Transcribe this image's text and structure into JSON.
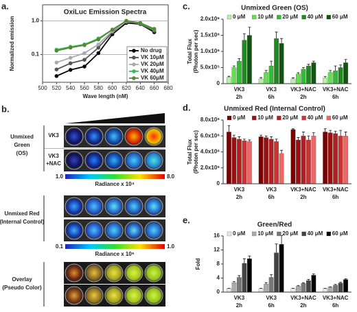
{
  "panel_labels": [
    "a.",
    "b.",
    "c.",
    "d.",
    "e."
  ],
  "panel_b": {
    "green_label": [
      "Unmixed",
      "Green",
      "(OS)"
    ],
    "row_labels": [
      [
        "VK3"
      ],
      [
        "VK3",
        "+NAC"
      ]
    ],
    "green_scale": {
      "min": "1.0",
      "label": "Radiance x 10⁴",
      "max": "8.0"
    },
    "red_label": [
      "Unmixed Red",
      "(Internal Control)"
    ],
    "red_scale": {
      "min": "0.1",
      "label": "Radiance x 10⁶",
      "max": "1.0"
    },
    "overlay_label": [
      "Overlay",
      "(Pseudo Color)"
    ]
  },
  "chart_data": [
    {
      "type": "line",
      "title": "OxiLuc Emission Spectra",
      "x_label": "Wave length (nM)",
      "y_label": [
        "Normalized emission"
      ],
      "x": [
        520,
        540,
        560,
        580,
        600,
        620,
        640,
        660
      ],
      "series": [
        {
          "name": "No drug",
          "color": "#000000",
          "values": [
            0.023,
            0.035,
            0.044,
            0.11,
            0.4,
            0.87,
            0.8,
            0.46
          ]
        },
        {
          "name": "VK 10μM",
          "color": "#555555",
          "values": [
            0.036,
            0.055,
            0.07,
            0.16,
            0.46,
            1.0,
            0.8,
            0.5
          ]
        },
        {
          "name": "VK 20μM",
          "color": "#aaaaaa",
          "values": [
            0.058,
            0.08,
            0.11,
            0.2,
            0.5,
            0.95,
            0.85,
            0.55
          ]
        },
        {
          "name": "VK 40μM",
          "color": "#33bb55",
          "values": [
            0.14,
            0.17,
            0.2,
            0.3,
            0.55,
            1.0,
            0.85,
            0.55
          ]
        },
        {
          "name": "VK 60μM",
          "color": "#558833",
          "values": [
            0.13,
            0.16,
            0.19,
            0.28,
            0.55,
            1.0,
            0.87,
            0.58
          ]
        }
      ],
      "xlim": [
        500,
        680
      ],
      "xticks": [
        500,
        520,
        540,
        560,
        580,
        600,
        620,
        640,
        660,
        680
      ],
      "ylim": [
        0.015,
        3
      ],
      "yticks": [
        0.1,
        {
          "value": 1,
          "label": "1.0"
        }
      ],
      "log_y": true,
      "grid": true,
      "legend": "lower right"
    },
    {
      "type": "bar",
      "title": "Unmixed Green (OS)",
      "y_label": [
        "Total Flux",
        "(Photon per sec)"
      ],
      "categories": [
        [
          "VK3",
          "2h"
        ],
        [
          "VK3",
          "6h"
        ],
        [
          "VK3+NAC",
          "2h"
        ],
        [
          "VK3+NAC",
          "6h"
        ]
      ],
      "series": [
        {
          "name": "0 μM",
          "color": "#b8f0a8",
          "values": [
            200000,
            150000,
            150000,
            180000
          ],
          "errors": [
            30000,
            40000,
            30000,
            40000
          ]
        },
        {
          "name": "10 μM",
          "color": "#66dd55",
          "values": [
            500000,
            350000,
            300000,
            350000
          ],
          "errors": [
            50000,
            60000,
            40000,
            60000
          ]
        },
        {
          "name": "20 μM",
          "color": "#33bb33",
          "values": [
            700000,
            550000,
            450000,
            400000
          ],
          "errors": [
            80000,
            150000,
            50000,
            150000
          ]
        },
        {
          "name": "40 μM",
          "color": "#228822",
          "values": [
            1350000,
            1400000,
            550000,
            500000
          ],
          "errors": [
            200000,
            200000,
            50000,
            80000
          ]
        },
        {
          "name": "60 μM",
          "color": "#115511",
          "values": [
            1500000,
            1250000,
            650000,
            650000
          ],
          "errors": [
            250000,
            150000,
            50000,
            100000
          ]
        }
      ],
      "ylim": [
        0,
        2000000
      ],
      "yticks": [
        0,
        {
          "value": 500000,
          "label": "5.0x10⁵"
        },
        {
          "value": 1000000,
          "label": "1.0x10⁶"
        },
        {
          "value": 1500000,
          "label": "1.5x10⁶"
        },
        {
          "value": 2000000,
          "label": "2.0x10⁶"
        }
      ],
      "legend": "top"
    },
    {
      "type": "bar",
      "title": "Unmixed Red (Internal Control)",
      "y_label": [
        "Total Flux",
        "(Photon per sec)"
      ],
      "categories": [
        [
          "VK3",
          "2h"
        ],
        [
          "VK3",
          "6h"
        ],
        [
          "VK3+NAC",
          "2h"
        ],
        [
          "VK3+NAC",
          "6h"
        ]
      ],
      "series": [
        {
          "name": "0 μM",
          "color": "#7a0000",
          "values": [
            6500000,
            5900000,
            6800000,
            6500000
          ],
          "errors": [
            800000,
            200000,
            100000,
            400000
          ]
        },
        {
          "name": "10 μM",
          "color": "#991111",
          "values": [
            5800000,
            5800000,
            5500000,
            6400000
          ],
          "errors": [
            300000,
            200000,
            300000,
            300000
          ]
        },
        {
          "name": "20 μM",
          "color": "#b02222",
          "values": [
            5600000,
            5600000,
            6000000,
            6300000
          ],
          "errors": [
            300000,
            300000,
            500000,
            300000
          ]
        },
        {
          "name": "40 μM",
          "color": "#cc3333",
          "values": [
            5400000,
            5300000,
            5500000,
            6000000
          ],
          "errors": [
            200000,
            300000,
            500000,
            700000
          ]
        },
        {
          "name": "60 μM",
          "color": "#ee6666",
          "values": [
            5300000,
            3800000,
            6000000,
            6000000
          ],
          "errors": [
            200000,
            400000,
            400000,
            500000
          ]
        }
      ],
      "ylim": [
        0,
        8000000
      ],
      "yticks": [
        0,
        {
          "value": 2000000,
          "label": "2.0x10⁶"
        },
        {
          "value": 4000000,
          "label": "4.0x10⁶"
        },
        {
          "value": 6000000,
          "label": "6.0x10⁶"
        },
        {
          "value": 8000000,
          "label": "8.0x10⁶"
        }
      ],
      "legend": "top"
    },
    {
      "type": "bar",
      "title": "Green/Red",
      "y_label": [
        "Fold"
      ],
      "categories": [
        [
          "VK3",
          "2h"
        ],
        [
          "VK3",
          "6h"
        ],
        [
          "VK3+NAC",
          "2h"
        ],
        [
          "VK3+NAC",
          "6h"
        ]
      ],
      "series": [
        {
          "name": "0 μM",
          "color": "#e6e6e6",
          "values": [
            1,
            1,
            1,
            1
          ],
          "errors": [
            0.1,
            0.1,
            0.1,
            0.1
          ]
        },
        {
          "name": "10 μM",
          "color": "#aaaaaa",
          "values": [
            2.7,
            2.3,
            1.7,
            1.4
          ],
          "errors": [
            0.3,
            0.4,
            0.2,
            0.1
          ]
        },
        {
          "name": "20 μM",
          "color": "#777777",
          "values": [
            4.2,
            4.2,
            2.5,
            2.0
          ],
          "errors": [
            0.5,
            0.8,
            0.2,
            0.2
          ]
        },
        {
          "name": "40 μM",
          "color": "#444444",
          "values": [
            8.2,
            11.2,
            3.3,
            2.6
          ],
          "errors": [
            1.3,
            2.5,
            0.3,
            0.2
          ]
        },
        {
          "name": "60 μM",
          "color": "#000000",
          "values": [
            9.5,
            13.6,
            4.8,
            3.6
          ],
          "errors": [
            0.8,
            2.5,
            0.4,
            0.2
          ]
        }
      ],
      "ylim": [
        0,
        16
      ],
      "yticks": [
        0,
        4,
        8,
        12,
        16
      ],
      "legend": "top"
    }
  ]
}
